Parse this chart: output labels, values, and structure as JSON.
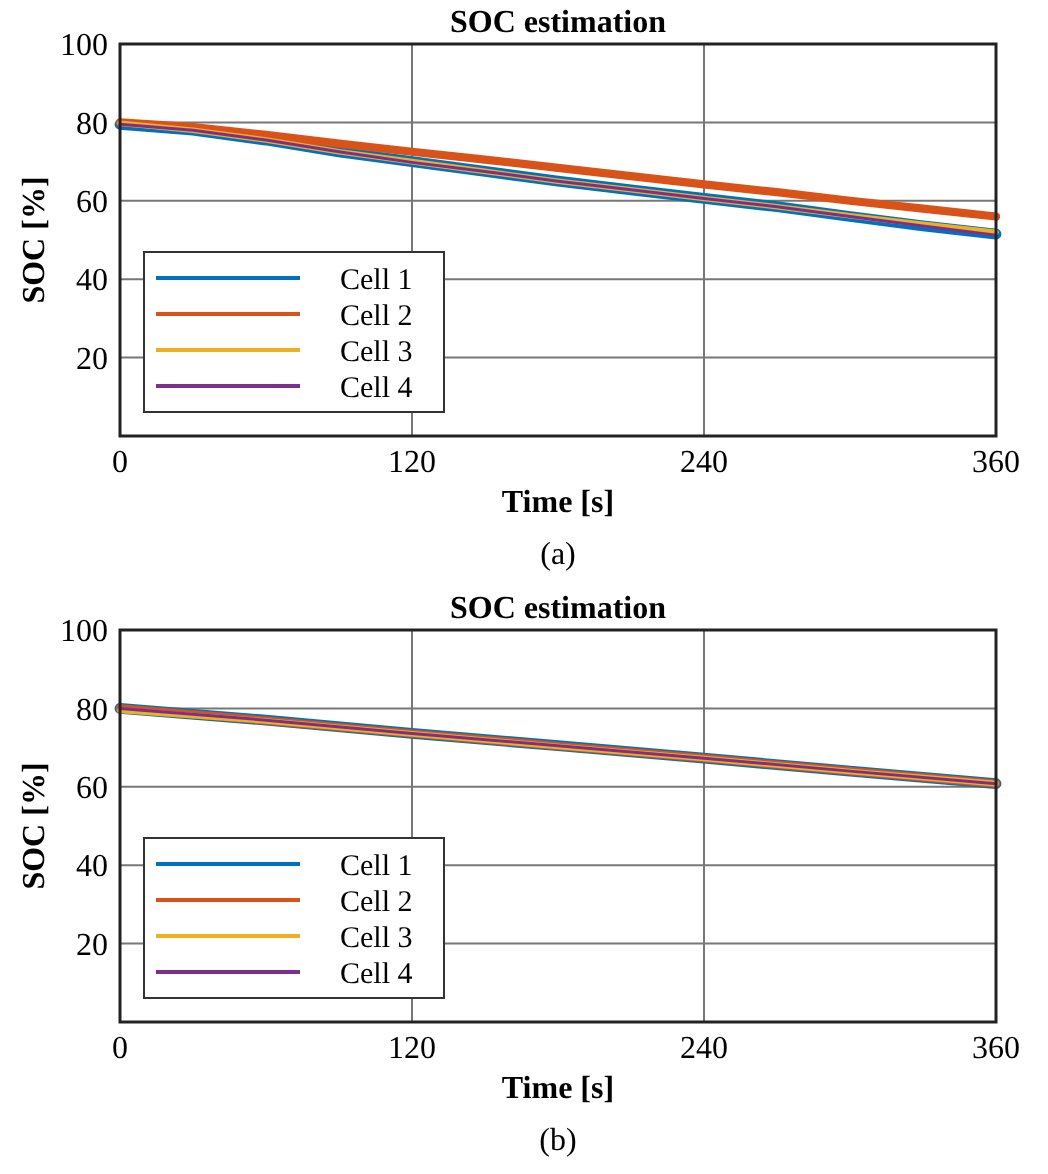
{
  "chart_data": [
    {
      "type": "line",
      "title": "SOC estimation",
      "xlabel": "Time [s]",
      "ylabel": "SOC [%]",
      "annotations": [
        "(a)"
      ],
      "xlim": [
        0,
        360
      ],
      "xticks": [
        0,
        120,
        240,
        360
      ],
      "ylim": [
        0,
        100
      ],
      "yticks": [
        20,
        40,
        60,
        80,
        100
      ],
      "grid": true,
      "legend": "bottom left",
      "line_style": "solid",
      "x": [
        0,
        30,
        60,
        90,
        120,
        150,
        180,
        210,
        240,
        270,
        300,
        330,
        360
      ],
      "series": [
        {
          "name": "Cell 1",
          "color": "#0072bd",
          "values": [
            79.5,
            78,
            75.5,
            72.5,
            70,
            67.5,
            65,
            62.8,
            60.6,
            58.5,
            56,
            53.6,
            51.5
          ]
        },
        {
          "name": "Cell 2",
          "color": "#d95319",
          "values": [
            80,
            78.8,
            76.8,
            74.6,
            72.5,
            70.5,
            68.4,
            66.3,
            64.2,
            62.2,
            60,
            58,
            56
          ]
        },
        {
          "name": "Cell 3",
          "color": "#edb120",
          "values": [
            79.8,
            78,
            75.5,
            72.5,
            70,
            67.5,
            65,
            62.8,
            60.6,
            58.5,
            56.2,
            54,
            52
          ]
        },
        {
          "name": "Cell 4",
          "color": "#7e2f8e",
          "values": [
            79.5,
            78,
            75.5,
            72.5,
            69.8,
            67.5,
            65,
            62.8,
            60.6,
            58.5,
            56,
            53.6,
            51.2
          ]
        }
      ]
    },
    {
      "type": "line",
      "title": "SOC estimation",
      "xlabel": "Time [s]",
      "ylabel": "SOC [%]",
      "annotations": [
        "(b)"
      ],
      "xlim": [
        0,
        360
      ],
      "xticks": [
        0,
        120,
        240,
        360
      ],
      "ylim": [
        0,
        100
      ],
      "yticks": [
        20,
        40,
        60,
        80,
        100
      ],
      "grid": true,
      "legend": "bottom left",
      "line_style": "solid",
      "x": [
        0,
        60,
        120,
        180,
        240,
        300,
        360
      ],
      "series": [
        {
          "name": "Cell 1",
          "color": "#0072bd",
          "values": [
            80,
            77,
            73.6,
            70.5,
            67.3,
            64,
            60.8
          ]
        },
        {
          "name": "Cell 2",
          "color": "#d95319",
          "values": [
            80,
            76.9,
            73.6,
            70.4,
            67.3,
            64,
            60.8
          ]
        },
        {
          "name": "Cell 3",
          "color": "#edb120",
          "values": [
            79.5,
            76.8,
            73.5,
            70.3,
            67.2,
            63.9,
            60.8
          ]
        },
        {
          "name": "Cell 4",
          "color": "#7e2f8e",
          "values": [
            80,
            77,
            73.6,
            70.5,
            67.3,
            64,
            60.8
          ]
        }
      ]
    }
  ]
}
